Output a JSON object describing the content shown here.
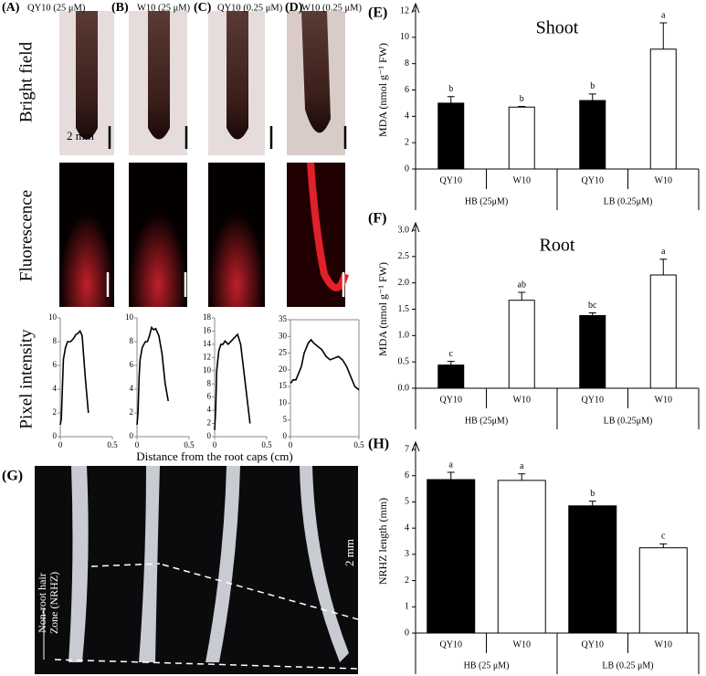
{
  "figure": {
    "columns": [
      {
        "label": "(A)",
        "header": "QY10 (25 μM)"
      },
      {
        "label": "(B)",
        "header": "W10 (25 μM)"
      },
      {
        "label": "(C)",
        "header": "QY10 (0.25 μM)"
      },
      {
        "label": "(D)",
        "header": "W10 (0.25 μM)"
      }
    ],
    "rows": [
      "Bright field",
      "Fluorescence",
      "Pixel intensity"
    ],
    "scale_bar": "2 mm",
    "x_axis_label": "Distance from the root caps (cm)",
    "panel_g": {
      "label": "(G)",
      "scale_bar": "2 mm",
      "zone_label": [
        "Non-root hair",
        "Zone (NRHZ)"
      ]
    }
  },
  "chart_data": [
    {
      "type": "line",
      "color": "#000000",
      "xlim": [
        0,
        0.5
      ],
      "xticks": [
        0,
        0.5
      ],
      "ylim": [
        0,
        10
      ],
      "yticks": [
        0,
        2,
        4,
        6,
        8,
        10
      ],
      "x": [
        0,
        0.01,
        0.02,
        0.03,
        0.05,
        0.07,
        0.1,
        0.13,
        0.15,
        0.17,
        0.19,
        0.21,
        0.24,
        0.27
      ],
      "values": [
        1,
        1.5,
        4,
        6.5,
        7.5,
        8,
        8,
        8.3,
        8.6,
        8.7,
        8.9,
        8.5,
        5,
        2
      ]
    },
    {
      "type": "line",
      "color": "#000000",
      "xlim": [
        0,
        0.5
      ],
      "xticks": [
        0,
        0.5
      ],
      "ylim": [
        0,
        10
      ],
      "yticks": [
        0,
        2,
        4,
        6,
        8,
        10
      ],
      "x": [
        0,
        0.01,
        0.02,
        0.03,
        0.05,
        0.08,
        0.1,
        0.12,
        0.14,
        0.16,
        0.18,
        0.21,
        0.24,
        0.27,
        0.3
      ],
      "values": [
        1,
        2,
        5,
        6.5,
        7.5,
        8,
        8,
        8.5,
        9.2,
        9,
        9.1,
        8.5,
        7,
        4.5,
        3
      ]
    },
    {
      "type": "line",
      "color": "#000000",
      "xlim": [
        0,
        0.5
      ],
      "xticks": [
        0,
        0.5
      ],
      "ylim": [
        0,
        18
      ],
      "yticks": [
        0,
        2,
        4,
        6,
        8,
        10,
        12,
        14,
        16,
        18
      ],
      "x": [
        0,
        0.01,
        0.02,
        0.04,
        0.06,
        0.08,
        0.1,
        0.13,
        0.16,
        0.19,
        0.22,
        0.25,
        0.28,
        0.31,
        0.34
      ],
      "values": [
        1,
        4,
        10,
        13,
        14,
        14,
        14.5,
        14,
        14.5,
        15,
        15.5,
        14,
        10,
        6,
        2
      ]
    },
    {
      "type": "line",
      "color": "#000000",
      "box": true,
      "xlim": [
        0,
        0.5
      ],
      "xticks": [
        0,
        0.5
      ],
      "ylim": [
        0,
        35
      ],
      "yticks": [
        0,
        5,
        10,
        15,
        20,
        25,
        30,
        35
      ],
      "x": [
        0,
        0.02,
        0.04,
        0.06,
        0.08,
        0.1,
        0.13,
        0.15,
        0.17,
        0.2,
        0.23,
        0.26,
        0.29,
        0.32,
        0.35,
        0.38,
        0.41,
        0.44,
        0.47,
        0.5
      ],
      "values": [
        16,
        17,
        17,
        19,
        21,
        25,
        28,
        29,
        28,
        27,
        26,
        24,
        23,
        23.5,
        24,
        23,
        21,
        18,
        15,
        14
      ]
    },
    {
      "type": "bar",
      "label": "(E)",
      "title": "Shoot",
      "y_label": "MDA (nmol g⁻¹ FW)",
      "categories": [
        "QY10",
        "W10",
        "QY10",
        "W10"
      ],
      "groups": [
        "HB (25μM)",
        "LB (0.25μM)"
      ],
      "values": [
        5.0,
        4.7,
        5.2,
        9.1
      ],
      "errors": [
        0.5,
        0.05,
        0.5,
        2.0
      ],
      "letters": [
        "b",
        "b",
        "b",
        "a"
      ],
      "colors": [
        "#000000",
        "#ffffff",
        "#000000",
        "#ffffff"
      ],
      "ylim": [
        0,
        12
      ],
      "yticks": [
        0,
        2,
        4,
        6,
        8,
        10,
        12
      ]
    },
    {
      "type": "bar",
      "label": "(F)",
      "title": "Root",
      "y_label": "MDA (nmol g⁻¹ FW)",
      "categories": [
        "QY10",
        "W10",
        "QY10",
        "W10"
      ],
      "groups": [
        "HB (25μM)",
        "LB (0.25μM)"
      ],
      "values": [
        0.44,
        1.67,
        1.38,
        2.15
      ],
      "errors": [
        0.07,
        0.15,
        0.05,
        0.3
      ],
      "letters": [
        "c",
        "ab",
        "bc",
        "a"
      ],
      "colors": [
        "#000000",
        "#ffffff",
        "#000000",
        "#ffffff"
      ],
      "ylim": [
        0,
        3
      ],
      "yticks": [
        {
          "value": 0,
          "label": "0.0"
        },
        {
          "value": 0.5,
          "label": "0.5"
        },
        {
          "value": 1,
          "label": "1.0"
        },
        {
          "value": 1.5,
          "label": "1.5"
        },
        {
          "value": 2,
          "label": "2.0"
        },
        {
          "value": 2.5,
          "label": "2.5"
        },
        {
          "value": 3,
          "label": "3.0"
        }
      ]
    },
    {
      "type": "bar",
      "label": "(H)",
      "y_label": "NRHZ  length (mm)",
      "categories": [
        "QY10",
        "W10",
        "QY10",
        "W10"
      ],
      "groups": [
        "HB (25 μM)",
        "LB (0.25 μM)"
      ],
      "values": [
        5.85,
        5.82,
        4.85,
        3.25
      ],
      "errors": [
        0.28,
        0.25,
        0.18,
        0.15
      ],
      "letters": [
        "a",
        "a",
        "b",
        "c"
      ],
      "colors": [
        "#000000",
        "#ffffff",
        "#000000",
        "#ffffff"
      ],
      "ylim": [
        0,
        7
      ],
      "yticks": [
        0,
        1,
        2,
        3,
        4,
        5,
        6,
        7
      ]
    }
  ]
}
